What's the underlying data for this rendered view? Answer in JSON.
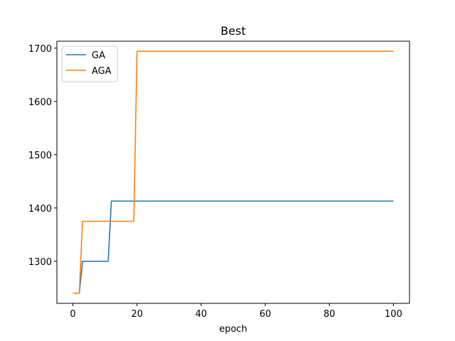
{
  "chart_data": {
    "type": "line",
    "title": "Best",
    "xlabel": "epoch",
    "ylabel": "",
    "xlim": [
      -5,
      105
    ],
    "ylim": [
      1221,
      1713
    ],
    "xticks": [
      0,
      20,
      40,
      60,
      80,
      100
    ],
    "yticks": [
      1300,
      1400,
      1500,
      1600,
      1700
    ],
    "grid": false,
    "legend_position": "top-left",
    "series": [
      {
        "name": "GA",
        "color": "#1f77b4",
        "points": [
          [
            0,
            1240
          ],
          [
            2,
            1240
          ],
          [
            3,
            1300
          ],
          [
            11,
            1300
          ],
          [
            12,
            1413
          ],
          [
            100,
            1413
          ]
        ]
      },
      {
        "name": "AGA",
        "color": "#ff7f0e",
        "points": [
          [
            0,
            1240
          ],
          [
            2,
            1240
          ],
          [
            3,
            1375
          ],
          [
            19,
            1375
          ],
          [
            20,
            1694
          ],
          [
            100,
            1694
          ]
        ]
      }
    ]
  }
}
